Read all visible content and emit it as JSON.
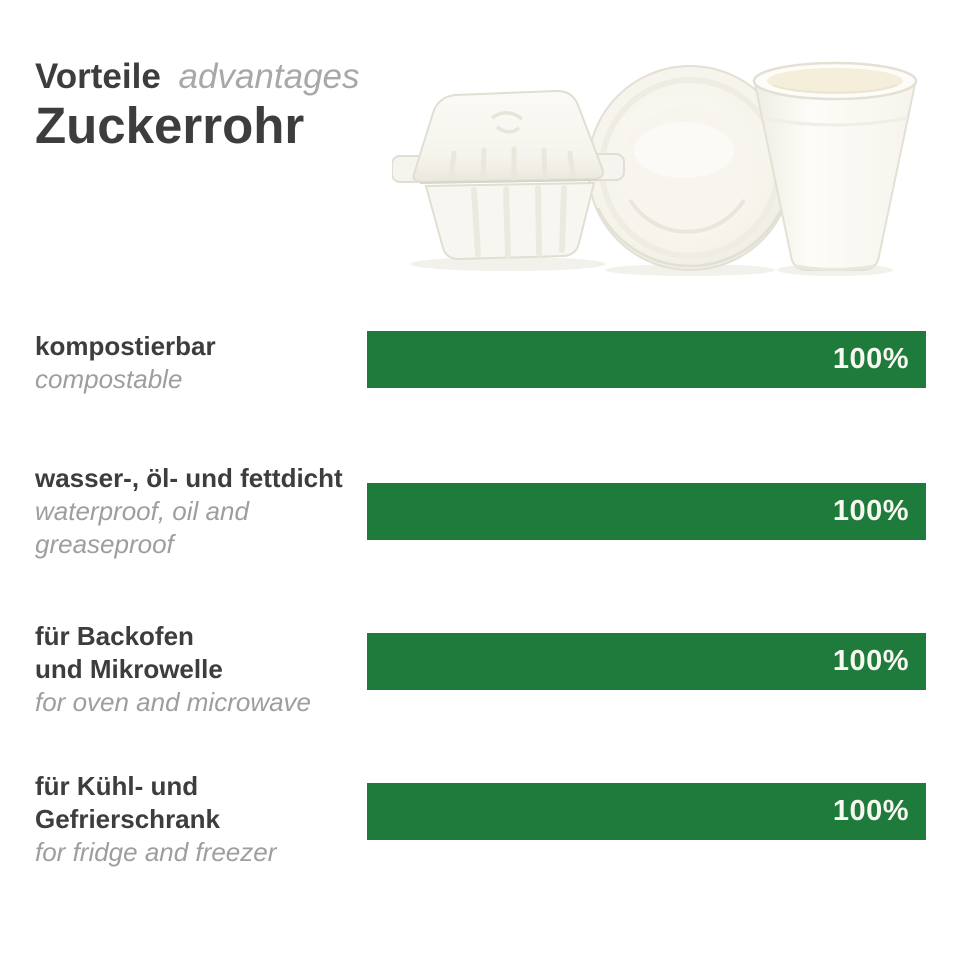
{
  "header": {
    "title_de": "Vorteile",
    "title_en": "advantages",
    "subtitle": "Zuckerrohr"
  },
  "products": {
    "items": [
      "burger-box",
      "plate",
      "cup"
    ],
    "description": "white sugarcane bagasse tableware"
  },
  "chart_data": {
    "type": "bar",
    "orientation": "horizontal",
    "title": "Vorteile advantages Zuckerrohr",
    "xlim": [
      0,
      100
    ],
    "grid": false,
    "legend": false,
    "bar_color": "#1e7b3c",
    "rows": [
      {
        "label_de": "kompostierbar",
        "label_en": "compostable",
        "value": 100,
        "value_label": "100%"
      },
      {
        "label_de": "wasser-, öl- und fettdicht",
        "label_en": "waterproof, oil and\ngreaseproof",
        "value": 100,
        "value_label": "100%"
      },
      {
        "label_de": "für Backofen\nund Mikrowelle",
        "label_en": "for oven and microwave",
        "value": 100,
        "value_label": "100%"
      },
      {
        "label_de": "für Kühl- und\nGefrierschrank",
        "label_en": "for fridge and freezer",
        "value": 100,
        "value_label": "100%"
      }
    ]
  },
  "colors": {
    "bar-green": "#1e7b3c",
    "text-dark": "#3d3d3d",
    "text-gray": "#9e9e9e",
    "text-gray-light": "#a8a8a8",
    "value-text": "#f7f8ef",
    "background": "#ffffff"
  }
}
